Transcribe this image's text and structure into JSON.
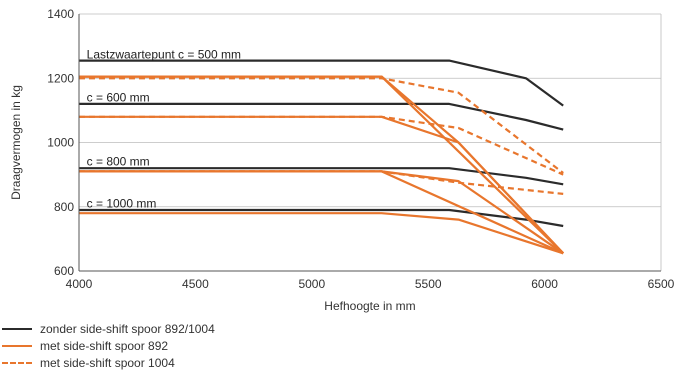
{
  "chart_data": {
    "type": "line",
    "xlabel": "Hefhoogte in mm",
    "ylabel": "Draagvermogen in kg",
    "xlim": [
      4000,
      6500
    ],
    "ylim": [
      600,
      1400
    ],
    "xticks": [
      4000,
      4500,
      5000,
      5500,
      6000,
      6500
    ],
    "yticks": [
      600,
      800,
      1000,
      1200,
      1400
    ],
    "grid": "horizontal",
    "legend_placement": "bottom-left",
    "colors": {
      "black": "#2b2b2b",
      "orange": "#e8762d"
    },
    "annotations": [
      {
        "text": "Lastzwaartepunt c = 500 mm",
        "x": 4020,
        "y": 1262
      },
      {
        "text": "c = 600 mm",
        "x": 4020,
        "y": 1128
      },
      {
        "text": "c = 800 mm",
        "x": 4020,
        "y": 928
      },
      {
        "text": "c = 1000 mm",
        "x": 4020,
        "y": 798
      }
    ],
    "series": [
      {
        "name": "zonder side-shift spoor 892/1004",
        "style": "black-solid",
        "lines": [
          [
            [
              4000,
              1255
            ],
            [
              5590,
              1255
            ],
            [
              5920,
              1200
            ],
            [
              6080,
              1115
            ]
          ],
          [
            [
              4000,
              1120
            ],
            [
              5590,
              1120
            ],
            [
              5920,
              1070
            ],
            [
              6080,
              1040
            ]
          ],
          [
            [
              4000,
              920
            ],
            [
              5590,
              920
            ],
            [
              5920,
              890
            ],
            [
              6080,
              870
            ]
          ],
          [
            [
              4000,
              790
            ],
            [
              5590,
              790
            ],
            [
              5920,
              760
            ],
            [
              6080,
              740
            ]
          ]
        ]
      },
      {
        "name": "met side-shift spoor 892",
        "style": "orange-solid",
        "lines": [
          [
            [
              4000,
              1205
            ],
            [
              5300,
              1205
            ],
            [
              6080,
              655
            ]
          ],
          [
            [
              4000,
              1205
            ],
            [
              5300,
              1205
            ],
            [
              5630,
              1000
            ],
            [
              6080,
              655
            ]
          ],
          [
            [
              4000,
              1080
            ],
            [
              5300,
              1080
            ],
            [
              5630,
              1000
            ],
            [
              6080,
              655
            ]
          ],
          [
            [
              4000,
              910
            ],
            [
              5300,
              910
            ],
            [
              6080,
              655
            ]
          ],
          [
            [
              4000,
              910
            ],
            [
              5300,
              910
            ],
            [
              5630,
              880
            ],
            [
              6080,
              655
            ]
          ],
          [
            [
              4000,
              780
            ],
            [
              5300,
              780
            ],
            [
              5630,
              760
            ],
            [
              6080,
              655
            ]
          ]
        ]
      },
      {
        "name": "met side-shift spoor 1004",
        "style": "orange-dashed",
        "lines": [
          [
            [
              4000,
              1200
            ],
            [
              5300,
              1200
            ],
            [
              5630,
              1155
            ],
            [
              6080,
              905
            ]
          ],
          [
            [
              4000,
              1080
            ],
            [
              5300,
              1080
            ],
            [
              5630,
              1045
            ],
            [
              6080,
              900
            ]
          ],
          [
            [
              4000,
              910
            ],
            [
              5300,
              910
            ],
            [
              5630,
              875
            ],
            [
              6080,
              840
            ]
          ]
        ]
      }
    ]
  }
}
